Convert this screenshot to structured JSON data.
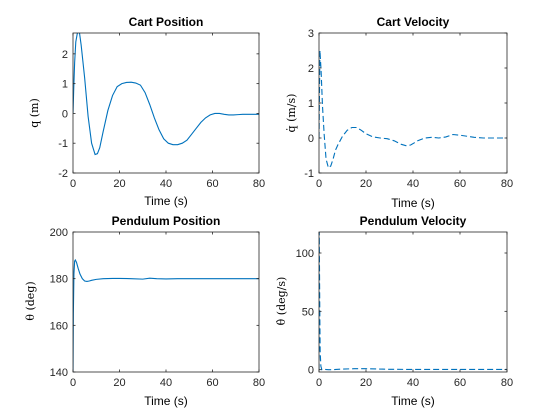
{
  "colors": {
    "line": "#0072BD",
    "axis": "#262626",
    "background": "#ffffff"
  },
  "chart_data": [
    {
      "type": "line",
      "title": "Cart Position",
      "xlabel": "Time (s)",
      "ylabel": "q (m)",
      "xlim": [
        0,
        80
      ],
      "ylim": [
        -2,
        2.7
      ],
      "xticks": [
        "0",
        "20",
        "40",
        "60",
        "80"
      ],
      "yticks": [
        "-2",
        "-1",
        "0",
        "1",
        "2"
      ],
      "grid": false,
      "series": [
        {
          "style": "solid",
          "x": [
            0,
            0.3,
            0.7,
            1.2,
            2,
            2.8,
            3.5,
            5,
            6.5,
            8,
            9.5,
            10.5,
            11.5,
            13,
            15,
            17,
            19,
            21,
            23,
            25,
            27,
            29,
            31,
            33,
            35,
            37,
            39,
            41,
            43,
            45,
            47,
            49,
            51,
            53,
            55,
            57,
            59,
            61,
            63,
            65,
            67,
            69,
            71,
            73,
            75,
            77,
            80
          ],
          "y": [
            0,
            0.8,
            1.7,
            2.4,
            2.75,
            2.7,
            2.3,
            1.2,
            -0.1,
            -1.0,
            -1.38,
            -1.35,
            -1.15,
            -0.6,
            0.1,
            0.6,
            0.9,
            1.0,
            1.04,
            1.05,
            1.02,
            0.95,
            0.7,
            0.3,
            -0.15,
            -0.55,
            -0.85,
            -1.0,
            -1.05,
            -1.05,
            -1.0,
            -0.9,
            -0.7,
            -0.5,
            -0.3,
            -0.15,
            -0.05,
            0.0,
            0.0,
            -0.03,
            -0.05,
            -0.05,
            -0.04,
            -0.03,
            -0.03,
            -0.03,
            -0.03
          ]
        }
      ]
    },
    {
      "type": "line",
      "title": "Cart Velocity",
      "xlabel": "Time (s)",
      "ylabel": "q̇ (m/s)",
      "xlim": [
        0,
        80
      ],
      "ylim": [
        -1,
        3
      ],
      "xticks": [
        "0",
        "20",
        "40",
        "60",
        "80"
      ],
      "yticks": [
        "-1",
        "0",
        "1",
        "2",
        "3"
      ],
      "grid": false,
      "series": [
        {
          "style": "dashed",
          "x": [
            0,
            0.4,
            0.9,
            1.5,
            2.2,
            3,
            4,
            5,
            6,
            7,
            8,
            10,
            12,
            14,
            16,
            18,
            20,
            23,
            26,
            29,
            32,
            35,
            37,
            39,
            42,
            45,
            48,
            51,
            54,
            57,
            60,
            63,
            66,
            70,
            75,
            80
          ],
          "y": [
            0,
            2.5,
            1.9,
            0.9,
            0.1,
            -0.6,
            -0.85,
            -0.8,
            -0.6,
            -0.35,
            -0.2,
            0.05,
            0.22,
            0.3,
            0.3,
            0.22,
            0.12,
            0.03,
            0.0,
            -0.02,
            -0.08,
            -0.18,
            -0.22,
            -0.2,
            -0.08,
            0.0,
            0.02,
            0.0,
            0.03,
            0.1,
            0.08,
            0.05,
            0.02,
            0.0,
            0.0,
            0.0
          ]
        }
      ]
    },
    {
      "type": "line",
      "title": "Pendulum Position",
      "xlabel": "Time (s)",
      "ylabel": "θ (deg)",
      "xlim": [
        0,
        80
      ],
      "ylim": [
        140,
        200
      ],
      "xticks": [
        "0",
        "20",
        "40",
        "60",
        "80"
      ],
      "yticks": [
        "140",
        "160",
        "180",
        "200"
      ],
      "grid": false,
      "series": [
        {
          "style": "solid",
          "x": [
            0,
            0.15,
            0.4,
            0.7,
            1.0,
            1.5,
            2.2,
            3,
            4,
            5,
            6,
            7,
            8,
            10,
            13,
            17,
            20,
            25,
            30,
            33,
            36,
            40,
            45,
            50,
            60,
            70,
            80
          ],
          "y": [
            140,
            165,
            182,
            187.5,
            188,
            187,
            184.5,
            182,
            180,
            179,
            178.8,
            179,
            179.3,
            179.7,
            180,
            180.1,
            180.1,
            180,
            179.8,
            180.2,
            180,
            179.9,
            180,
            180,
            180,
            180,
            180
          ]
        }
      ]
    },
    {
      "type": "line",
      "title": "Pendulum Velocity",
      "xlabel": "Time (s)",
      "ylabel": "θ̇ (deg/s)",
      "xlim": [
        0,
        80
      ],
      "ylim": [
        -2,
        118
      ],
      "xticks": [
        "0",
        "20",
        "40",
        "60",
        "80"
      ],
      "yticks": [
        "0",
        "50",
        "100"
      ],
      "grid": false,
      "series": [
        {
          "style": "dashed",
          "x": [
            0,
            0.1,
            0.2,
            0.35,
            0.5,
            0.8,
            1.2,
            1.8,
            2.5,
            4,
            6,
            10,
            15,
            20,
            30,
            40,
            50,
            60,
            70,
            80
          ],
          "y": [
            0,
            118,
            90,
            45,
            15,
            3,
            0,
            0.5,
            0.2,
            0,
            0,
            0.5,
            0.8,
            0.8,
            0.3,
            0.2,
            0.2,
            0.2,
            0.2,
            0.2
          ]
        }
      ]
    }
  ]
}
